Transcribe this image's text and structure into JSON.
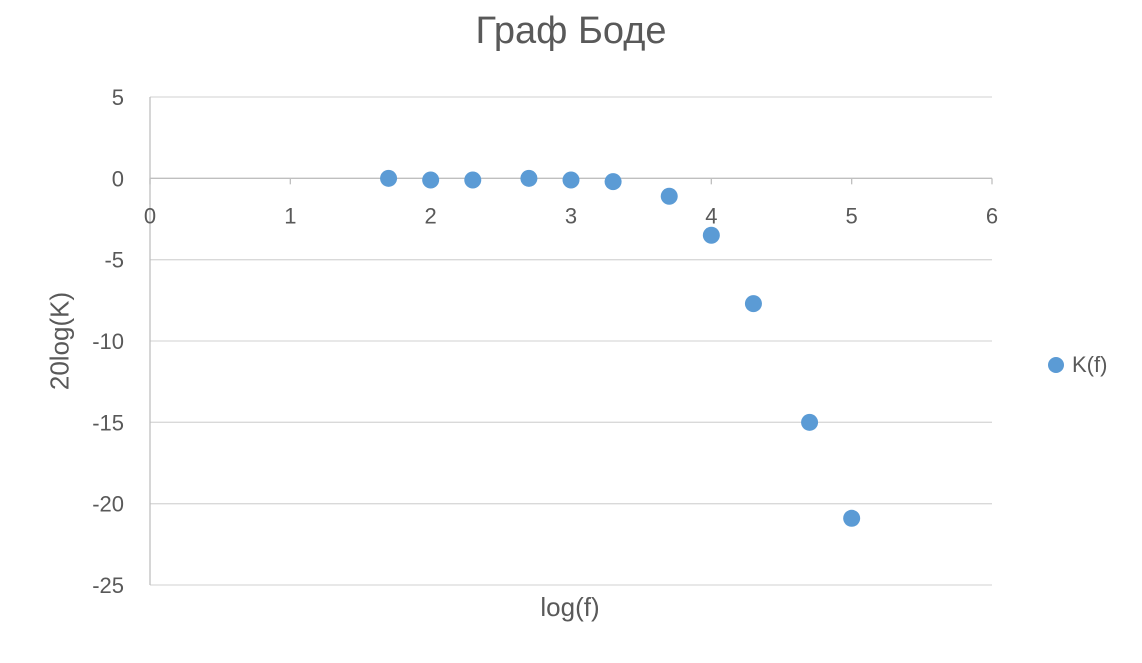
{
  "chart_data": {
    "type": "scatter",
    "title": "Граф Боде",
    "xlabel": "log(f)",
    "ylabel": "20log(K)",
    "xlim": [
      0,
      6
    ],
    "ylim": [
      -25,
      5
    ],
    "x_ticks": [
      "0",
      "1",
      "2",
      "3",
      "4",
      "5",
      "6"
    ],
    "y_ticks": [
      "5",
      "0",
      "-5",
      "-10",
      "-15",
      "-20",
      "-25"
    ],
    "x_axis_position": "crosses at y = 0",
    "grid": "horizontal major gridlines",
    "legend": "right",
    "colors": {
      "marker": "#5B9BD5",
      "gridline": "#D9D9D9",
      "axis_line": "#BFBFBF",
      "text": "#595959"
    },
    "series": [
      {
        "name": "K(f)",
        "marker": "circle",
        "points": [
          {
            "x": 1.7,
            "y": 0.0
          },
          {
            "x": 2.0,
            "y": -0.1
          },
          {
            "x": 2.3,
            "y": -0.1
          },
          {
            "x": 2.7,
            "y": 0.0
          },
          {
            "x": 3.0,
            "y": -0.1
          },
          {
            "x": 3.3,
            "y": -0.2
          },
          {
            "x": 3.7,
            "y": -1.1
          },
          {
            "x": 4.0,
            "y": -3.5
          },
          {
            "x": 4.3,
            "y": -7.7
          },
          {
            "x": 4.7,
            "y": -15.0
          },
          {
            "x": 5.0,
            "y": -20.9
          }
        ]
      }
    ]
  }
}
